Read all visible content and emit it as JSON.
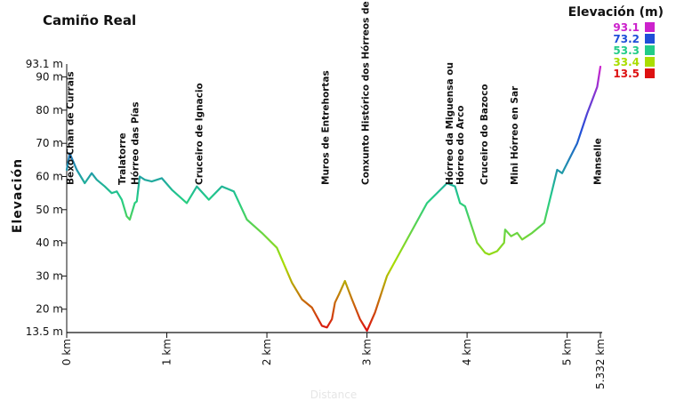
{
  "chart_data": {
    "type": "line",
    "title": "Camiño Real",
    "ylabel": "Elevación",
    "xlabel": "Distance",
    "xlim": [
      0,
      5.332
    ],
    "ylim": [
      13.5,
      93.1
    ],
    "y_ticks": [
      {
        "value": 90,
        "label": "90 m"
      },
      {
        "value": 80,
        "label": "80 m"
      },
      {
        "value": 70,
        "label": "70 m"
      },
      {
        "value": 60,
        "label": "60 m"
      },
      {
        "value": 50,
        "label": "50 m"
      },
      {
        "value": 40,
        "label": "40 m"
      },
      {
        "value": 30,
        "label": "30 m"
      },
      {
        "value": 20,
        "label": "20 m"
      }
    ],
    "y_min_label": "13.5 m",
    "y_max_label": "93.1 m",
    "x_ticks": [
      {
        "value": 0,
        "label": "0 km"
      },
      {
        "value": 1,
        "label": "1 km"
      },
      {
        "value": 2,
        "label": "2 km"
      },
      {
        "value": 3,
        "label": "3 km"
      },
      {
        "value": 4,
        "label": "4 km"
      },
      {
        "value": 5,
        "label": "5 km"
      }
    ],
    "x_end_label": "5.332 km",
    "series": [
      {
        "x": [
          0,
          0.03,
          0.1,
          0.18,
          0.25,
          0.3,
          0.38,
          0.45,
          0.5,
          0.55,
          0.6,
          0.63,
          0.68,
          0.7,
          0.73,
          0.78,
          0.85,
          0.95,
          1.05,
          1.2,
          1.3,
          1.42,
          1.55,
          1.67,
          1.8,
          1.95,
          2.1,
          2.25,
          2.35,
          2.45,
          2.55,
          2.6,
          2.65,
          2.68,
          2.72,
          2.78,
          2.85,
          2.93,
          3.0,
          3.08,
          3.2,
          3.4,
          3.6,
          3.8,
          3.88,
          3.93,
          3.98,
          4.1,
          4.18,
          4.22,
          4.3,
          4.37,
          4.38,
          4.44,
          4.5,
          4.55,
          4.65,
          4.77,
          4.9,
          4.95,
          5.0,
          5.1,
          5.2,
          5.25,
          5.3,
          5.332
        ],
        "y": [
          62,
          67,
          62,
          58,
          61,
          59,
          57,
          55,
          55.5,
          53,
          48,
          47,
          52,
          52.5,
          60,
          59,
          58.5,
          59.5,
          56,
          52,
          57,
          53,
          57,
          55.5,
          47,
          43,
          38.5,
          28,
          23,
          20.5,
          15,
          14.5,
          17,
          22,
          24.5,
          28.5,
          23,
          17,
          13.5,
          19,
          30,
          41,
          52,
          58,
          57,
          52,
          51,
          40,
          37,
          36.5,
          37.5,
          40,
          44,
          42,
          43,
          41,
          43,
          46,
          62,
          61,
          64,
          70,
          79,
          83,
          87,
          93.1
        ]
      }
    ],
    "annotations": [
      {
        "x": 0.03,
        "label": "Bexo-Chan de Currais"
      },
      {
        "x": 0.55,
        "label": "Tralatorre"
      },
      {
        "x": 0.68,
        "label": "Hórreo das Pías"
      },
      {
        "x": 1.32,
        "label": "Cruceiro de Ignacio"
      },
      {
        "x": 2.58,
        "label": "Muros de Entrehortas"
      },
      {
        "x": 2.98,
        "label": "Conxunto Histórico dos Hórreos de Imo"
      },
      {
        "x": 3.93,
        "lines": [
          "Hórreo da Miguensa ou",
          "Hórreo do Arco"
        ]
      },
      {
        "x": 4.17,
        "label": "Cruceiro do Bazoco"
      },
      {
        "x": 4.47,
        "label": "Mini Hórreo en Sar"
      },
      {
        "x": 5.3,
        "label": "Manselle"
      }
    ],
    "legend": {
      "title": "Elevación (m)",
      "placement": "top-right",
      "entries": [
        {
          "label": "93.1",
          "color": "#cc22cc"
        },
        {
          "label": "73.2",
          "color": "#1f4fd8"
        },
        {
          "label": "53.3",
          "color": "#22cc88"
        },
        {
          "label": "33.4",
          "color": "#aadd00"
        },
        {
          "label": "13.5",
          "color": "#dd1111"
        }
      ]
    },
    "grid": false
  }
}
